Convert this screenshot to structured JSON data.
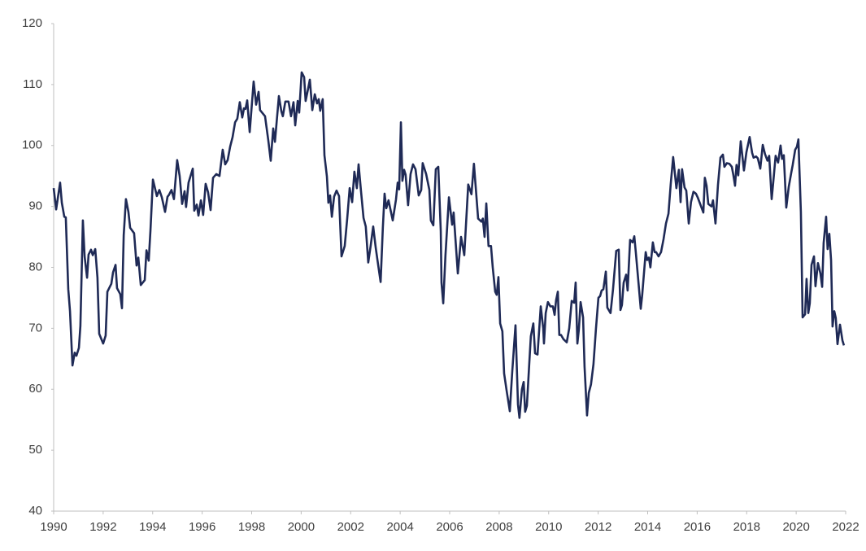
{
  "chart_data": {
    "type": "line",
    "color": "#1f2a56",
    "xlim": [
      1990,
      2022
    ],
    "xticks": [
      1990,
      1992,
      1994,
      1996,
      1998,
      2000,
      2002,
      2004,
      2006,
      2008,
      2010,
      2012,
      2014,
      2016,
      2018,
      2020,
      2022
    ],
    "ylim": [
      40,
      120
    ],
    "yticks": [
      40,
      50,
      60,
      70,
      80,
      90,
      100,
      110,
      120
    ],
    "grid": false,
    "x": [
      1990.0,
      1990.1,
      1990.26,
      1990.33,
      1990.43,
      1990.49,
      1990.59,
      1990.66,
      1990.76,
      1990.85,
      1990.92,
      1991.02,
      1991.08,
      1991.18,
      1991.25,
      1991.35,
      1991.41,
      1991.51,
      1991.58,
      1991.68,
      1991.77,
      1991.84,
      1992.0,
      1992.1,
      1992.17,
      1992.33,
      1992.4,
      1992.5,
      1992.56,
      1992.69,
      1992.76,
      1992.83,
      1992.92,
      1993.02,
      1993.09,
      1993.25,
      1993.35,
      1993.42,
      1993.52,
      1993.68,
      1993.75,
      1993.84,
      1993.91,
      1994.01,
      1994.17,
      1994.27,
      1994.37,
      1994.5,
      1994.6,
      1994.66,
      1994.76,
      1994.86,
      1994.99,
      1995.09,
      1995.19,
      1995.29,
      1995.35,
      1995.45,
      1995.62,
      1995.68,
      1995.78,
      1995.85,
      1995.95,
      1996.04,
      1996.14,
      1996.24,
      1996.34,
      1996.44,
      1996.57,
      1996.7,
      1996.83,
      1996.93,
      1997.03,
      1997.13,
      1997.23,
      1997.33,
      1997.42,
      1997.52,
      1997.62,
      1997.69,
      1997.75,
      1997.82,
      1997.92,
      1998.08,
      1998.18,
      1998.28,
      1998.34,
      1998.54,
      1998.67,
      1998.77,
      1998.87,
      1998.94,
      1999.1,
      1999.2,
      1999.26,
      1999.36,
      1999.49,
      1999.59,
      1999.69,
      1999.76,
      1999.86,
      1999.92,
      2000.02,
      2000.12,
      2000.18,
      2000.28,
      2000.35,
      2000.45,
      2000.55,
      2000.64,
      2000.71,
      2000.77,
      2000.87,
      2000.94,
      2001.04,
      2001.1,
      2001.17,
      2001.24,
      2001.33,
      2001.43,
      2001.53,
      2001.63,
      2001.76,
      2001.86,
      2001.96,
      2002.06,
      2002.15,
      2002.25,
      2002.32,
      2002.42,
      2002.52,
      2002.61,
      2002.71,
      2002.81,
      2002.91,
      2003.01,
      2003.11,
      2003.21,
      2003.3,
      2003.37,
      2003.44,
      2003.53,
      2003.7,
      2003.83,
      2003.9,
      2003.96,
      2004.03,
      2004.09,
      2004.16,
      2004.22,
      2004.32,
      2004.42,
      2004.52,
      2004.62,
      2004.75,
      2004.85,
      2004.91,
      2005.05,
      2005.18,
      2005.24,
      2005.34,
      2005.44,
      2005.54,
      2005.64,
      2005.67,
      2005.74,
      2005.83,
      2005.97,
      2006.1,
      2006.16,
      2006.33,
      2006.46,
      2006.59,
      2006.75,
      2006.88,
      2006.98,
      2007.15,
      2007.28,
      2007.34,
      2007.41,
      2007.48,
      2007.57,
      2007.67,
      2007.74,
      2007.84,
      2007.9,
      2007.97,
      2008.04,
      2008.13,
      2008.2,
      2008.3,
      2008.43,
      2008.53,
      2008.66,
      2008.76,
      2008.82,
      2008.92,
      2008.99,
      2009.05,
      2009.12,
      2009.22,
      2009.28,
      2009.38,
      2009.45,
      2009.55,
      2009.68,
      2009.78,
      2009.81,
      2009.88,
      2009.97,
      2010.07,
      2010.17,
      2010.24,
      2010.3,
      2010.37,
      2010.43,
      2010.5,
      2010.6,
      2010.73,
      2010.83,
      2010.93,
      2011.03,
      2011.09,
      2011.16,
      2011.22,
      2011.29,
      2011.39,
      2011.45,
      2011.55,
      2011.62,
      2011.71,
      2011.81,
      2011.91,
      2012.01,
      2012.08,
      2012.14,
      2012.21,
      2012.31,
      2012.37,
      2012.5,
      2012.6,
      2012.73,
      2012.83,
      2012.9,
      2012.96,
      2013.03,
      2013.13,
      2013.19,
      2013.29,
      2013.39,
      2013.46,
      2013.52,
      2013.62,
      2013.72,
      2013.78,
      2013.92,
      2013.98,
      2014.05,
      2014.11,
      2014.21,
      2014.28,
      2014.34,
      2014.44,
      2014.54,
      2014.64,
      2014.74,
      2014.84,
      2014.93,
      2015.03,
      2015.1,
      2015.16,
      2015.26,
      2015.33,
      2015.39,
      2015.49,
      2015.56,
      2015.66,
      2015.75,
      2015.85,
      2015.95,
      2016.02,
      2016.25,
      2016.31,
      2016.38,
      2016.45,
      2016.58,
      2016.64,
      2016.74,
      2016.84,
      2016.94,
      2017.04,
      2017.1,
      2017.2,
      2017.3,
      2017.4,
      2017.46,
      2017.53,
      2017.59,
      2017.66,
      2017.76,
      2017.82,
      2017.89,
      2017.99,
      2018.12,
      2018.22,
      2018.28,
      2018.38,
      2018.45,
      2018.55,
      2018.65,
      2018.74,
      2018.84,
      2018.91,
      2019.01,
      2019.07,
      2019.17,
      2019.27,
      2019.37,
      2019.43,
      2019.5,
      2019.6,
      2019.7,
      2019.8,
      2019.86,
      2019.96,
      2020.03,
      2020.09,
      2020.19,
      2020.26,
      2020.36,
      2020.42,
      2020.49,
      2020.55,
      2020.62,
      2020.72,
      2020.78,
      2020.88,
      2020.98,
      2021.05,
      2021.11,
      2021.21,
      2021.27,
      2021.34,
      2021.41,
      2021.47,
      2021.54,
      2021.6,
      2021.67,
      2021.77,
      2021.87,
      2021.93
    ],
    "values": [
      93,
      89.5,
      93.9,
      90.6,
      88.3,
      88.2,
      76.4,
      72.8,
      63.9,
      66,
      65.5,
      66.8,
      70.4,
      87.7,
      81.8,
      78.3,
      82.1,
      82.9,
      82,
      83,
      78.3,
      69.1,
      67.5,
      68.8,
      76,
      77.3,
      79.2,
      80.4,
      76.6,
      75.6,
      73.3,
      85.3,
      91.2,
      89.1,
      86.5,
      85.6,
      80.3,
      81.6,
      77.1,
      77.9,
      82.8,
      81.1,
      86,
      94.4,
      91.7,
      92.7,
      91.5,
      89.1,
      91.6,
      91.9,
      92.7,
      91.2,
      97.6,
      95,
      90.4,
      92.5,
      89.9,
      93.9,
      96.2,
      89.3,
      90.3,
      88.5,
      91,
      88.6,
      93.7,
      92.3,
      89.4,
      94.7,
      95.3,
      95,
      99.3,
      96.9,
      97.6,
      99.8,
      101.4,
      103.8,
      104.4,
      107.1,
      104.6,
      106.1,
      106,
      107.4,
      102.2,
      110.5,
      106.7,
      108.8,
      105.8,
      104.8,
      100.9,
      97.5,
      102.8,
      100.6,
      108.1,
      105.6,
      104.8,
      107.2,
      107.2,
      104.8,
      107.1,
      103.3,
      107.3,
      105.4,
      112,
      111.2,
      107.3,
      109.3,
      110.8,
      105.8,
      108.4,
      106.9,
      107.6,
      105.7,
      107.6,
      98.4,
      94.9,
      90.6,
      91.8,
      88.3,
      91.6,
      92.6,
      91.7,
      81.8,
      83.5,
      88,
      93,
      90.7,
      95.7,
      93,
      96.9,
      92.4,
      88.1,
      86.7,
      80.8,
      83.6,
      86.7,
      83.3,
      80.4,
      77.6,
      86.5,
      92.1,
      89.7,
      91,
      87.7,
      91.1,
      93.9,
      92.8,
      103.8,
      94.2,
      96,
      95.2,
      90.2,
      95.3,
      96.9,
      96.1,
      91.8,
      92.7,
      97.1,
      95.3,
      92.7,
      87.7,
      86.9,
      96.1,
      96.5,
      86,
      77.5,
      74.1,
      82,
      91.5,
      87,
      89,
      79,
      85,
      82,
      93.6,
      92,
      97,
      88,
      87.5,
      88,
      85,
      90.5,
      83.5,
      83.5,
      80,
      76,
      75.5,
      78.4,
      70.8,
      69.5,
      62.6,
      59.8,
      56.4,
      63,
      70.5,
      57.5,
      55.3,
      60,
      61.2,
      56.3,
      57.3,
      64.5,
      68.7,
      70.8,
      65.9,
      65.7,
      73.6,
      70,
      67.5,
      72.5,
      74.3,
      73.6,
      73.6,
      72.2,
      74.6,
      76,
      68.9,
      68.9,
      68.2,
      67.7,
      70,
      74.5,
      74.2,
      77.5,
      67.5,
      69.8,
      74.3,
      71.8,
      63.7,
      55.7,
      59.4,
      60.8,
      64.1,
      69.9,
      75,
      75.3,
      76.2,
      76.4,
      79.3,
      73.4,
      72.5,
      76.4,
      82.7,
      82.9,
      73,
      73.8,
      77.5,
      78.8,
      76.2,
      84.5,
      84.1,
      85.1,
      82.5,
      77.9,
      73.2,
      75.5,
      82.5,
      81.2,
      81.6,
      80,
      84.1,
      82.5,
      82.5,
      81.8,
      82.5,
      84.6,
      87.2,
      88.8,
      93.6,
      98.1,
      95.4,
      93,
      96,
      90.7,
      96.1,
      93.1,
      92.6,
      87.2,
      90.7,
      92.4,
      92.1,
      91.5,
      89,
      94.7,
      93.4,
      90.4,
      90,
      91,
      87.2,
      93.5,
      98,
      98.5,
      96.5,
      97.1,
      97,
      96.5,
      95.2,
      93.4,
      96.8,
      95.1,
      100.7,
      98.5,
      95.9,
      98.9,
      101.4,
      98.8,
      98,
      98.2,
      97.9,
      96.2,
      100.1,
      98.6,
      97.5,
      98.3,
      91.2,
      93.8,
      98.3,
      97.2,
      100,
      97.8,
      98.4,
      89.8,
      93.2,
      95.5,
      96.8,
      99.3,
      99.8,
      101,
      89.1,
      71.8,
      72.3,
      78.1,
      72.5,
      74.1,
      80.4,
      81.8,
      76.9,
      80.7,
      79,
      76.8,
      84,
      88.3,
      83,
      85.5,
      81.2,
      70.3,
      72.8,
      71.7,
      67.4,
      70.6,
      68,
      67.2
    ]
  }
}
